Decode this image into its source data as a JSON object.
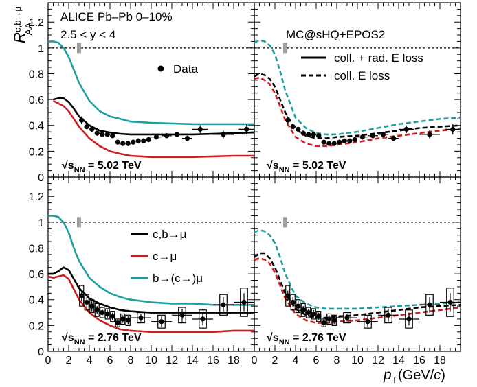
{
  "figure": {
    "ylabel_main": "R",
    "ylabel_sup": "c,b→μ",
    "ylabel_sub": "AA",
    "xlabel_main": "p",
    "xlabel_sub": "T",
    "xlabel_unit": " (GeV/",
    "xlabel_unit_c": "c",
    "xlabel_unit_end": ")",
    "collision_label": "ALICE Pb–Pb 0–10%",
    "rapidity_label": "2.5 < y < 4",
    "model_label": "MC@sHQ+EPOS2",
    "legend_data": "Data",
    "legend_collrad": "coll. + rad. E loss",
    "legend_coll": "coll. E loss",
    "legend_cb": "c,b→μ",
    "legend_c": "c→μ",
    "legend_b": "b→(c→)μ",
    "energy_top_prefix": "√s",
    "energy_sub": "NN",
    "energy_top_value": " = 5.02 TeV",
    "energy_bottom_value": " = 2.76 TeV",
    "yticks": [
      "0",
      "0.2",
      "0.4",
      "0.6",
      "0.8",
      "1",
      "1.2"
    ],
    "xticks": [
      "0",
      "2",
      "4",
      "6",
      "8",
      "10",
      "12",
      "14",
      "16",
      "18"
    ]
  },
  "colors": {
    "cb": "#000000",
    "c": "#cc1f1f",
    "b": "#1f9e9e",
    "data": "#000000",
    "unity": "#000000",
    "norm_box": "#a0a0a0"
  },
  "chart_data": [
    {
      "type": "line",
      "panel": "top-left",
      "energy": "5.02 TeV",
      "xlim": [
        0,
        20
      ],
      "ylim": [
        0,
        1.35
      ],
      "unity_line": 1,
      "series": [
        {
          "name": "c,b→μ",
          "style": "solid",
          "color": "#000000",
          "x": [
            0.5,
            1,
            1.5,
            2,
            2.5,
            3,
            4,
            5,
            6,
            7,
            8,
            10,
            12,
            14,
            16,
            18,
            20
          ],
          "y": [
            0.6,
            0.61,
            0.61,
            0.58,
            0.53,
            0.47,
            0.4,
            0.36,
            0.345,
            0.335,
            0.33,
            0.33,
            0.33,
            0.33,
            0.335,
            0.34,
            0.345
          ]
        },
        {
          "name": "c→μ",
          "style": "solid",
          "color": "#cc1f1f",
          "x": [
            0.5,
            1,
            1.5,
            2,
            2.5,
            3,
            4,
            5,
            6,
            7,
            8,
            10,
            12,
            14,
            16,
            18,
            20
          ],
          "y": [
            0.59,
            0.57,
            0.55,
            0.51,
            0.45,
            0.39,
            0.3,
            0.24,
            0.2,
            0.18,
            0.165,
            0.155,
            0.155,
            0.155,
            0.16,
            0.165,
            0.165
          ]
        },
        {
          "name": "b→(c→)μ",
          "style": "solid",
          "color": "#1f9e9e",
          "x": [
            0,
            0.5,
            1,
            1.5,
            2,
            2.5,
            3,
            4,
            5,
            6,
            7,
            8,
            10,
            12,
            14,
            16,
            18,
            20
          ],
          "y": [
            1.05,
            1.05,
            1.04,
            1.0,
            0.93,
            0.83,
            0.73,
            0.59,
            0.51,
            0.47,
            0.45,
            0.43,
            0.42,
            0.415,
            0.41,
            0.41,
            0.41,
            0.41
          ]
        }
      ],
      "points": {
        "name": "Data",
        "x": [
          3.25,
          3.75,
          4.25,
          4.75,
          5.25,
          5.75,
          6.25,
          6.75,
          7.25,
          7.75,
          8.25,
          8.75,
          9.25,
          9.75,
          10.5,
          11.5,
          12.5,
          13.5,
          14.75,
          17,
          19.25
        ],
        "y": [
          0.44,
          0.39,
          0.37,
          0.34,
          0.33,
          0.33,
          0.32,
          0.27,
          0.26,
          0.26,
          0.27,
          0.28,
          0.28,
          0.29,
          0.31,
          0.32,
          0.33,
          0.3,
          0.37,
          0.33,
          0.37
        ],
        "xerr": [
          0.25,
          0.25,
          0.25,
          0.25,
          0.25,
          0.25,
          0.25,
          0.25,
          0.25,
          0.25,
          0.25,
          0.25,
          0.25,
          0.25,
          0.5,
          0.5,
          0.5,
          0.5,
          0.75,
          1.0,
          0.75
        ],
        "yerr": [
          0.03,
          0.02,
          0.02,
          0.02,
          0.02,
          0.02,
          0.02,
          0.02,
          0.02,
          0.02,
          0.02,
          0.02,
          0.02,
          0.02,
          0.02,
          0.02,
          0.02,
          0.02,
          0.03,
          0.03,
          0.04
        ]
      }
    },
    {
      "type": "line",
      "panel": "top-right",
      "energy": "5.02 TeV",
      "xlim": [
        0,
        20
      ],
      "ylim": [
        0,
        1.35
      ],
      "unity_line": 1,
      "series": [
        {
          "name": "b→(c→)μ",
          "style": "dashed",
          "color": "#1f9e9e",
          "x": [
            0,
            0.5,
            1,
            1.5,
            2,
            2.5,
            3,
            4,
            5,
            6,
            7,
            8,
            10,
            12,
            14,
            16,
            18,
            20
          ],
          "y": [
            1.04,
            1.06,
            1.05,
            1.02,
            0.95,
            0.82,
            0.67,
            0.46,
            0.38,
            0.34,
            0.33,
            0.33,
            0.35,
            0.38,
            0.41,
            0.43,
            0.45,
            0.46
          ]
        },
        {
          "name": "c,b→μ",
          "style": "dashed",
          "color": "#000000",
          "x": [
            0,
            0.5,
            1,
            1.5,
            2,
            2.5,
            3,
            4,
            5,
            6,
            7,
            8,
            10,
            12,
            14,
            16,
            18,
            20
          ],
          "y": [
            0.78,
            0.8,
            0.79,
            0.76,
            0.7,
            0.6,
            0.5,
            0.37,
            0.32,
            0.3,
            0.3,
            0.31,
            0.32,
            0.34,
            0.36,
            0.38,
            0.39,
            0.4
          ]
        },
        {
          "name": "c→μ",
          "style": "dashed",
          "color": "#cc1f1f",
          "x": [
            0,
            0.5,
            1,
            1.5,
            2,
            2.5,
            3,
            4,
            5,
            6,
            7,
            8,
            10,
            12,
            14,
            16,
            18,
            20
          ],
          "y": [
            0.76,
            0.77,
            0.75,
            0.72,
            0.65,
            0.55,
            0.44,
            0.31,
            0.26,
            0.24,
            0.24,
            0.25,
            0.27,
            0.3,
            0.32,
            0.34,
            0.36,
            0.37
          ]
        }
      ],
      "points": {
        "name": "Data",
        "x": [
          3.25,
          3.75,
          4.25,
          4.75,
          5.25,
          5.75,
          6.25,
          6.75,
          7.25,
          7.75,
          8.25,
          8.75,
          9.25,
          9.75,
          10.5,
          11.5,
          12.5,
          13.5,
          14.75,
          17,
          19.25
        ],
        "y": [
          0.44,
          0.39,
          0.37,
          0.34,
          0.33,
          0.33,
          0.32,
          0.27,
          0.26,
          0.26,
          0.27,
          0.28,
          0.28,
          0.29,
          0.31,
          0.32,
          0.33,
          0.3,
          0.37,
          0.33,
          0.37
        ],
        "xerr": [
          0.25,
          0.25,
          0.25,
          0.25,
          0.25,
          0.25,
          0.25,
          0.25,
          0.25,
          0.25,
          0.25,
          0.25,
          0.25,
          0.25,
          0.5,
          0.5,
          0.5,
          0.5,
          0.75,
          1.0,
          0.75
        ],
        "yerr": [
          0.03,
          0.02,
          0.02,
          0.02,
          0.02,
          0.02,
          0.02,
          0.02,
          0.02,
          0.02,
          0.02,
          0.02,
          0.02,
          0.02,
          0.02,
          0.02,
          0.02,
          0.02,
          0.03,
          0.03,
          0.04
        ]
      }
    },
    {
      "type": "line",
      "panel": "bottom-left",
      "energy": "2.76 TeV",
      "xlim": [
        0,
        20
      ],
      "ylim": [
        0,
        1.35
      ],
      "unity_line": 1,
      "series": [
        {
          "name": "c,b→μ",
          "style": "solid",
          "color": "#000000",
          "x": [
            0,
            0.5,
            1,
            1.5,
            2,
            2.5,
            3,
            4,
            5,
            6,
            7,
            8,
            10,
            12,
            14,
            16,
            18,
            20
          ],
          "y": [
            0.6,
            0.6,
            0.62,
            0.65,
            0.63,
            0.56,
            0.49,
            0.41,
            0.37,
            0.34,
            0.32,
            0.31,
            0.3,
            0.3,
            0.3,
            0.3,
            0.3,
            0.3
          ]
        },
        {
          "name": "c→μ",
          "style": "solid",
          "color": "#cc1f1f",
          "x": [
            0,
            0.5,
            1,
            1.5,
            2,
            2.5,
            3,
            4,
            5,
            6,
            7,
            8,
            10,
            12,
            14,
            16,
            18,
            20
          ],
          "y": [
            0.58,
            0.57,
            0.58,
            0.59,
            0.56,
            0.48,
            0.4,
            0.3,
            0.24,
            0.2,
            0.17,
            0.16,
            0.15,
            0.15,
            0.15,
            0.15,
            0.16,
            0.16
          ]
        },
        {
          "name": "b→(c→)μ",
          "style": "solid",
          "color": "#1f9e9e",
          "x": [
            0,
            0.5,
            1,
            1.5,
            2,
            2.5,
            3,
            4,
            5,
            6,
            7,
            8,
            10,
            12,
            14,
            16,
            18,
            20
          ],
          "y": [
            1.05,
            1.05,
            1.04,
            1.0,
            0.92,
            0.8,
            0.7,
            0.57,
            0.5,
            0.45,
            0.42,
            0.4,
            0.38,
            0.37,
            0.37,
            0.36,
            0.36,
            0.36
          ]
        }
      ],
      "points": {
        "name": "Data",
        "x": [
          3.25,
          3.75,
          4.25,
          4.75,
          5.25,
          5.75,
          6.25,
          6.75,
          7.25,
          7.75,
          9.0,
          11.0,
          13.0,
          15.0,
          17.0,
          19.0
        ],
        "y": [
          0.43,
          0.38,
          0.35,
          0.32,
          0.3,
          0.29,
          0.27,
          0.22,
          0.25,
          0.24,
          0.26,
          0.23,
          0.28,
          0.25,
          0.36,
          0.38
        ],
        "xerr": [
          0.25,
          0.25,
          0.25,
          0.25,
          0.25,
          0.25,
          0.25,
          0.25,
          0.25,
          0.25,
          1.0,
          1.0,
          1.0,
          1.0,
          1.0,
          1.0
        ],
        "yerr": [
          0.04,
          0.04,
          0.04,
          0.03,
          0.03,
          0.03,
          0.03,
          0.03,
          0.03,
          0.03,
          0.03,
          0.04,
          0.05,
          0.05,
          0.06,
          0.07
        ],
        "syst": [
          0.08,
          0.06,
          0.05,
          0.05,
          0.04,
          0.04,
          0.04,
          0.03,
          0.04,
          0.04,
          0.04,
          0.05,
          0.06,
          0.07,
          0.08,
          0.11
        ]
      }
    },
    {
      "type": "line",
      "panel": "bottom-right",
      "energy": "2.76 TeV",
      "xlim": [
        0,
        20
      ],
      "ylim": [
        0,
        1.35
      ],
      "unity_line": 1,
      "series": [
        {
          "name": "b→(c→)μ",
          "style": "dashed",
          "color": "#1f9e9e",
          "x": [
            0,
            0.5,
            1,
            1.5,
            2,
            2.5,
            3,
            4,
            5,
            6,
            7,
            8,
            10,
            12,
            14,
            16,
            18,
            20
          ],
          "y": [
            0.92,
            0.94,
            0.93,
            0.9,
            0.84,
            0.73,
            0.6,
            0.43,
            0.37,
            0.34,
            0.33,
            0.33,
            0.33,
            0.34,
            0.35,
            0.36,
            0.37,
            0.38
          ]
        },
        {
          "name": "c,b→μ",
          "style": "dashed",
          "color": "#000000",
          "x": [
            0,
            0.5,
            1,
            1.5,
            2,
            2.5,
            3,
            4,
            5,
            6,
            7,
            8,
            10,
            12,
            14,
            16,
            18,
            20
          ],
          "y": [
            0.73,
            0.76,
            0.76,
            0.72,
            0.65,
            0.55,
            0.45,
            0.33,
            0.28,
            0.26,
            0.26,
            0.27,
            0.28,
            0.3,
            0.32,
            0.34,
            0.35,
            0.36
          ]
        },
        {
          "name": "c→μ",
          "style": "dashed",
          "color": "#cc1f1f",
          "x": [
            0,
            0.5,
            1,
            1.5,
            2,
            2.5,
            3,
            4,
            5,
            6,
            7,
            8,
            10,
            12,
            14,
            16,
            18,
            20
          ],
          "y": [
            0.71,
            0.72,
            0.71,
            0.68,
            0.61,
            0.51,
            0.41,
            0.29,
            0.24,
            0.22,
            0.22,
            0.23,
            0.24,
            0.26,
            0.28,
            0.3,
            0.32,
            0.34
          ]
        }
      ],
      "points": {
        "name": "Data",
        "x": [
          3.25,
          3.75,
          4.25,
          4.75,
          5.25,
          5.75,
          6.25,
          6.75,
          7.25,
          7.75,
          9.0,
          11.0,
          13.0,
          15.0,
          17.0,
          19.0
        ],
        "y": [
          0.43,
          0.38,
          0.35,
          0.32,
          0.3,
          0.29,
          0.27,
          0.22,
          0.25,
          0.24,
          0.26,
          0.23,
          0.28,
          0.25,
          0.36,
          0.38
        ],
        "xerr": [
          0.25,
          0.25,
          0.25,
          0.25,
          0.25,
          0.25,
          0.25,
          0.25,
          0.25,
          0.25,
          1.0,
          1.0,
          1.0,
          1.0,
          1.0,
          1.0
        ],
        "yerr": [
          0.04,
          0.04,
          0.04,
          0.03,
          0.03,
          0.03,
          0.03,
          0.03,
          0.03,
          0.03,
          0.03,
          0.04,
          0.05,
          0.05,
          0.06,
          0.07
        ],
        "syst": [
          0.08,
          0.06,
          0.05,
          0.05,
          0.04,
          0.04,
          0.04,
          0.03,
          0.04,
          0.04,
          0.04,
          0.05,
          0.06,
          0.07,
          0.08,
          0.11
        ]
      }
    }
  ]
}
